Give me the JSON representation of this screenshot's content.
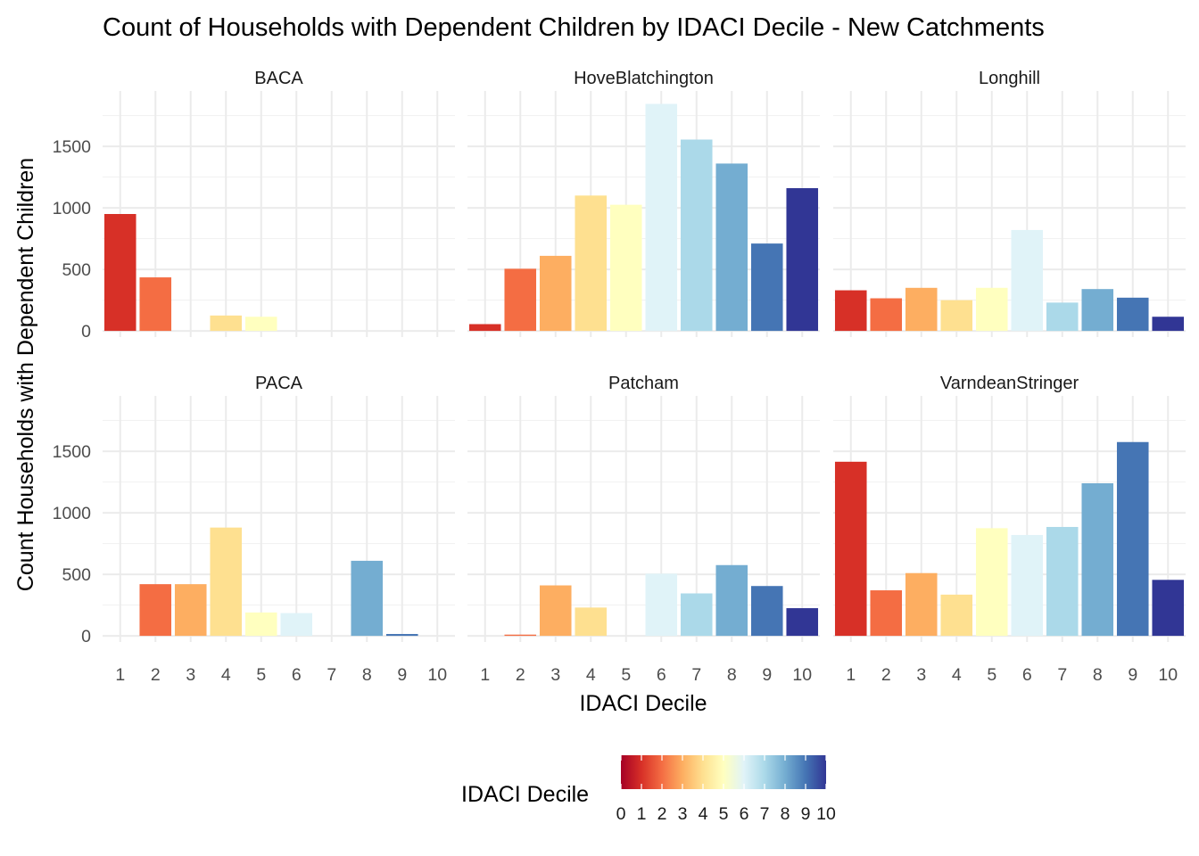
{
  "chart_data": {
    "type": "bar",
    "title": "Count of Households with Dependent Children by IDACI Decile - New Catchments",
    "xlabel": "IDACI Decile",
    "ylabel": "Count Households with Dependent Children",
    "categories": [
      "1",
      "2",
      "3",
      "4",
      "5",
      "6",
      "7",
      "8",
      "9",
      "10"
    ],
    "y_ticks": [
      "0",
      "500",
      "1000",
      "1500"
    ],
    "ylim": [
      -50,
      1950
    ],
    "grid": true,
    "facets": [
      {
        "name": "BACA",
        "values": [
          950,
          435,
          0,
          125,
          115,
          0,
          0,
          0,
          0,
          0
        ]
      },
      {
        "name": "HoveBlatchington",
        "values": [
          55,
          505,
          610,
          1100,
          1025,
          1845,
          1555,
          1360,
          710,
          1160
        ]
      },
      {
        "name": "Longhill",
        "values": [
          330,
          265,
          350,
          250,
          350,
          820,
          230,
          340,
          270,
          115
        ]
      },
      {
        "name": "PACA",
        "values": [
          0,
          420,
          420,
          880,
          190,
          185,
          0,
          610,
          15,
          0
        ]
      },
      {
        "name": "Patcham",
        "values": [
          0,
          10,
          410,
          230,
          0,
          505,
          345,
          575,
          405,
          225
        ]
      },
      {
        "name": "VarndeanStringer",
        "values": [
          1415,
          370,
          510,
          335,
          875,
          820,
          885,
          1240,
          1575,
          455
        ]
      }
    ],
    "legend": {
      "title": "IDACI Decile",
      "position": "bottom",
      "type": "colorbar",
      "range": [
        0,
        10
      ],
      "ticks": [
        "0",
        "1",
        "2",
        "3",
        "4",
        "5",
        "6",
        "7",
        "8",
        "9",
        "10"
      ],
      "colors": [
        "#a50026",
        "#d73027",
        "#f46d43",
        "#fdae61",
        "#fee090",
        "#ffffbf",
        "#e0f3f8",
        "#abd9e9",
        "#74add1",
        "#4575b4",
        "#313695"
      ]
    }
  }
}
